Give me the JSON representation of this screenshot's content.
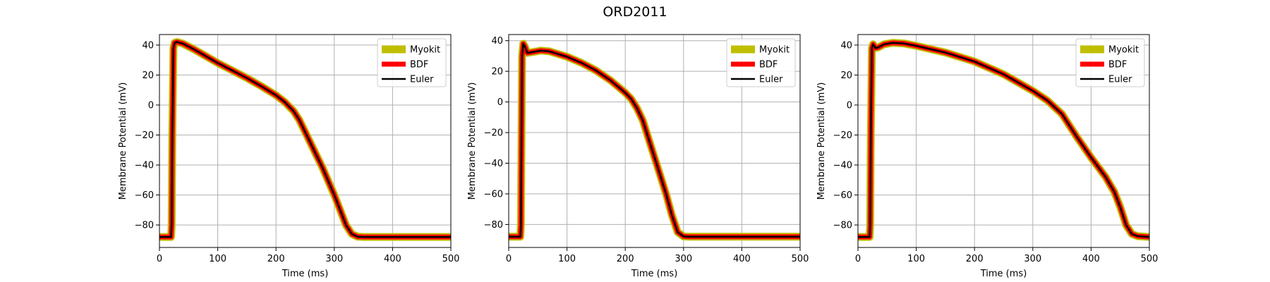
{
  "figure": {
    "title": "ORD2011"
  },
  "colors": {
    "myokit": "#bfbf00",
    "bdf": "#ff0000",
    "euler": "#000000",
    "grid": "#b0b0b0"
  },
  "chart_data": [
    {
      "type": "line",
      "xlabel": "Time (ms)",
      "ylabel": "Membrane Potential (mV)",
      "xlim": [
        0,
        500
      ],
      "ylim": [
        -95,
        47
      ],
      "xticks": [
        0,
        100,
        200,
        300,
        400,
        500
      ],
      "yticks": [
        -80,
        -60,
        -40,
        -20,
        0,
        20,
        40
      ],
      "grid": true,
      "legend_position": "top-right",
      "legend": [
        "Myokit",
        "BDF",
        "Euler"
      ],
      "x": [
        0,
        20,
        21,
        22,
        24,
        26,
        30,
        40,
        60,
        80,
        100,
        125,
        150,
        175,
        200,
        215,
        230,
        240,
        250,
        260,
        270,
        280,
        290,
        300,
        310,
        320,
        330,
        340,
        350,
        400,
        450,
        500
      ],
      "values": [
        -88,
        -88,
        -80,
        -20,
        38,
        41.5,
        42,
        41,
        37,
        32.5,
        28,
        23,
        18,
        12.5,
        6.5,
        2,
        -4,
        -10,
        -18,
        -26,
        -34,
        -42,
        -51,
        -60,
        -70,
        -80,
        -86,
        -87.8,
        -88,
        -88,
        -88,
        -88
      ]
    },
    {
      "type": "line",
      "xlabel": "Time (ms)",
      "ylabel": "Membrane Potential (mV)",
      "xlim": [
        0,
        500
      ],
      "ylim": [
        -95,
        44
      ],
      "xticks": [
        0,
        100,
        200,
        300,
        400,
        500
      ],
      "yticks": [
        -80,
        -60,
        -40,
        -20,
        0,
        20,
        40
      ],
      "grid": true,
      "legend_position": "top-right",
      "legend": [
        "Myokit",
        "BDF",
        "Euler"
      ],
      "x": [
        0,
        20,
        21,
        22,
        23,
        25,
        28,
        32,
        40,
        55,
        70,
        100,
        125,
        150,
        175,
        200,
        210,
        220,
        230,
        240,
        250,
        260,
        270,
        280,
        290,
        300,
        310,
        350,
        400,
        450,
        500
      ],
      "values": [
        -88,
        -88,
        -80,
        -20,
        30,
        38,
        36,
        32,
        32.5,
        33.5,
        33,
        29.5,
        25.5,
        20.5,
        14,
        6,
        2,
        -4,
        -12,
        -24,
        -36,
        -48,
        -60,
        -74,
        -85,
        -87.8,
        -88,
        -88,
        -88,
        -88,
        -88
      ]
    },
    {
      "type": "line",
      "xlabel": "Time (ms)",
      "ylabel": "Membrane Potential (mV)",
      "xlim": [
        0,
        500
      ],
      "ylim": [
        -95,
        47
      ],
      "xticks": [
        0,
        100,
        200,
        300,
        400,
        500
      ],
      "yticks": [
        -80,
        -60,
        -40,
        -20,
        0,
        20,
        40
      ],
      "grid": true,
      "legend_position": "top-right",
      "legend": [
        "Myokit",
        "BDF",
        "Euler"
      ],
      "x": [
        0,
        20,
        21,
        22,
        24,
        26,
        30,
        35,
        45,
        60,
        80,
        100,
        150,
        200,
        250,
        300,
        325,
        350,
        360,
        375,
        400,
        425,
        440,
        450,
        460,
        470,
        480,
        500
      ],
      "values": [
        -88,
        -88,
        -80,
        -20,
        38,
        40.5,
        38,
        38.5,
        40.5,
        41.5,
        41,
        39.5,
        35,
        29,
        20.5,
        9.5,
        3,
        -6,
        -12,
        -21,
        -35,
        -48,
        -58,
        -68,
        -80,
        -86,
        -87.5,
        -88
      ]
    }
  ]
}
